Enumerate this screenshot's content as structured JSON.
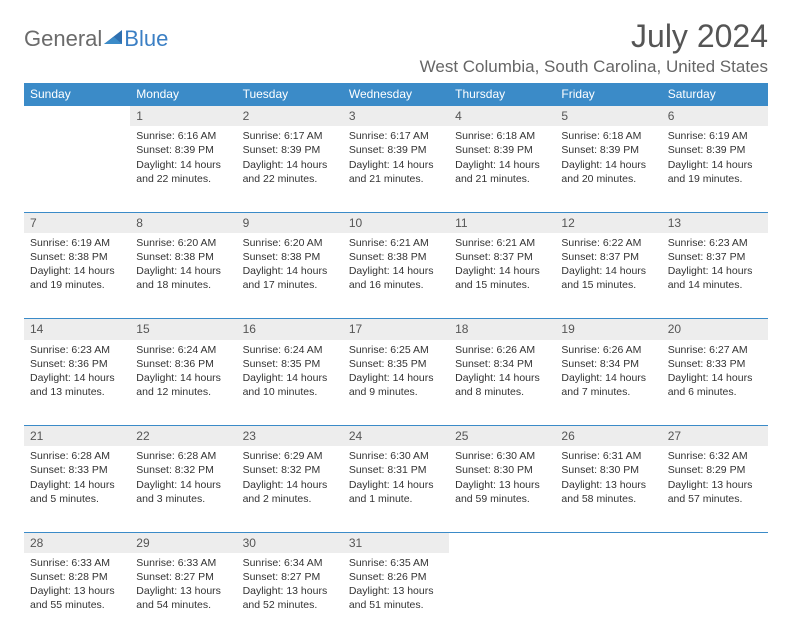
{
  "logo": {
    "text1": "General",
    "text2": "Blue"
  },
  "title": "July 2024",
  "location": "West Columbia, South Carolina, United States",
  "colors": {
    "header_bg": "#3b8bc8",
    "header_text": "#ffffff",
    "daynum_bg": "#ededed",
    "row_border": "#3b8bc8",
    "text": "#333333",
    "title_text": "#555555",
    "logo_gray": "#6b6b6b",
    "logo_blue": "#3b7fc4"
  },
  "days_of_week": [
    "Sunday",
    "Monday",
    "Tuesday",
    "Wednesday",
    "Thursday",
    "Friday",
    "Saturday"
  ],
  "weeks": [
    [
      null,
      {
        "n": "1",
        "sunrise": "Sunrise: 6:16 AM",
        "sunset": "Sunset: 8:39 PM",
        "daylight": "Daylight: 14 hours and 22 minutes."
      },
      {
        "n": "2",
        "sunrise": "Sunrise: 6:17 AM",
        "sunset": "Sunset: 8:39 PM",
        "daylight": "Daylight: 14 hours and 22 minutes."
      },
      {
        "n": "3",
        "sunrise": "Sunrise: 6:17 AM",
        "sunset": "Sunset: 8:39 PM",
        "daylight": "Daylight: 14 hours and 21 minutes."
      },
      {
        "n": "4",
        "sunrise": "Sunrise: 6:18 AM",
        "sunset": "Sunset: 8:39 PM",
        "daylight": "Daylight: 14 hours and 21 minutes."
      },
      {
        "n": "5",
        "sunrise": "Sunrise: 6:18 AM",
        "sunset": "Sunset: 8:39 PM",
        "daylight": "Daylight: 14 hours and 20 minutes."
      },
      {
        "n": "6",
        "sunrise": "Sunrise: 6:19 AM",
        "sunset": "Sunset: 8:39 PM",
        "daylight": "Daylight: 14 hours and 19 minutes."
      }
    ],
    [
      {
        "n": "7",
        "sunrise": "Sunrise: 6:19 AM",
        "sunset": "Sunset: 8:38 PM",
        "daylight": "Daylight: 14 hours and 19 minutes."
      },
      {
        "n": "8",
        "sunrise": "Sunrise: 6:20 AM",
        "sunset": "Sunset: 8:38 PM",
        "daylight": "Daylight: 14 hours and 18 minutes."
      },
      {
        "n": "9",
        "sunrise": "Sunrise: 6:20 AM",
        "sunset": "Sunset: 8:38 PM",
        "daylight": "Daylight: 14 hours and 17 minutes."
      },
      {
        "n": "10",
        "sunrise": "Sunrise: 6:21 AM",
        "sunset": "Sunset: 8:38 PM",
        "daylight": "Daylight: 14 hours and 16 minutes."
      },
      {
        "n": "11",
        "sunrise": "Sunrise: 6:21 AM",
        "sunset": "Sunset: 8:37 PM",
        "daylight": "Daylight: 14 hours and 15 minutes."
      },
      {
        "n": "12",
        "sunrise": "Sunrise: 6:22 AM",
        "sunset": "Sunset: 8:37 PM",
        "daylight": "Daylight: 14 hours and 15 minutes."
      },
      {
        "n": "13",
        "sunrise": "Sunrise: 6:23 AM",
        "sunset": "Sunset: 8:37 PM",
        "daylight": "Daylight: 14 hours and 14 minutes."
      }
    ],
    [
      {
        "n": "14",
        "sunrise": "Sunrise: 6:23 AM",
        "sunset": "Sunset: 8:36 PM",
        "daylight": "Daylight: 14 hours and 13 minutes."
      },
      {
        "n": "15",
        "sunrise": "Sunrise: 6:24 AM",
        "sunset": "Sunset: 8:36 PM",
        "daylight": "Daylight: 14 hours and 12 minutes."
      },
      {
        "n": "16",
        "sunrise": "Sunrise: 6:24 AM",
        "sunset": "Sunset: 8:35 PM",
        "daylight": "Daylight: 14 hours and 10 minutes."
      },
      {
        "n": "17",
        "sunrise": "Sunrise: 6:25 AM",
        "sunset": "Sunset: 8:35 PM",
        "daylight": "Daylight: 14 hours and 9 minutes."
      },
      {
        "n": "18",
        "sunrise": "Sunrise: 6:26 AM",
        "sunset": "Sunset: 8:34 PM",
        "daylight": "Daylight: 14 hours and 8 minutes."
      },
      {
        "n": "19",
        "sunrise": "Sunrise: 6:26 AM",
        "sunset": "Sunset: 8:34 PM",
        "daylight": "Daylight: 14 hours and 7 minutes."
      },
      {
        "n": "20",
        "sunrise": "Sunrise: 6:27 AM",
        "sunset": "Sunset: 8:33 PM",
        "daylight": "Daylight: 14 hours and 6 minutes."
      }
    ],
    [
      {
        "n": "21",
        "sunrise": "Sunrise: 6:28 AM",
        "sunset": "Sunset: 8:33 PM",
        "daylight": "Daylight: 14 hours and 5 minutes."
      },
      {
        "n": "22",
        "sunrise": "Sunrise: 6:28 AM",
        "sunset": "Sunset: 8:32 PM",
        "daylight": "Daylight: 14 hours and 3 minutes."
      },
      {
        "n": "23",
        "sunrise": "Sunrise: 6:29 AM",
        "sunset": "Sunset: 8:32 PM",
        "daylight": "Daylight: 14 hours and 2 minutes."
      },
      {
        "n": "24",
        "sunrise": "Sunrise: 6:30 AM",
        "sunset": "Sunset: 8:31 PM",
        "daylight": "Daylight: 14 hours and 1 minute."
      },
      {
        "n": "25",
        "sunrise": "Sunrise: 6:30 AM",
        "sunset": "Sunset: 8:30 PM",
        "daylight": "Daylight: 13 hours and 59 minutes."
      },
      {
        "n": "26",
        "sunrise": "Sunrise: 6:31 AM",
        "sunset": "Sunset: 8:30 PM",
        "daylight": "Daylight: 13 hours and 58 minutes."
      },
      {
        "n": "27",
        "sunrise": "Sunrise: 6:32 AM",
        "sunset": "Sunset: 8:29 PM",
        "daylight": "Daylight: 13 hours and 57 minutes."
      }
    ],
    [
      {
        "n": "28",
        "sunrise": "Sunrise: 6:33 AM",
        "sunset": "Sunset: 8:28 PM",
        "daylight": "Daylight: 13 hours and 55 minutes."
      },
      {
        "n": "29",
        "sunrise": "Sunrise: 6:33 AM",
        "sunset": "Sunset: 8:27 PM",
        "daylight": "Daylight: 13 hours and 54 minutes."
      },
      {
        "n": "30",
        "sunrise": "Sunrise: 6:34 AM",
        "sunset": "Sunset: 8:27 PM",
        "daylight": "Daylight: 13 hours and 52 minutes."
      },
      {
        "n": "31",
        "sunrise": "Sunrise: 6:35 AM",
        "sunset": "Sunset: 8:26 PM",
        "daylight": "Daylight: 13 hours and 51 minutes."
      },
      null,
      null,
      null
    ]
  ]
}
